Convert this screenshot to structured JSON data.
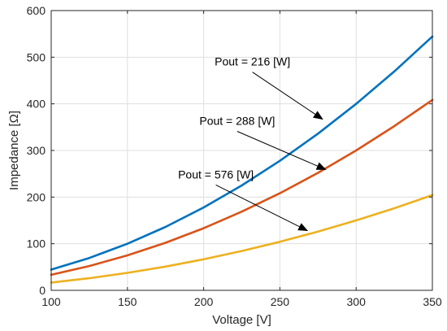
{
  "chart_data": {
    "type": "line",
    "title": "",
    "xlabel": "Voltage [V]",
    "ylabel": "Impedance [Ω]",
    "xlim": [
      100,
      350
    ],
    "ylim": [
      0,
      600
    ],
    "xticks": [
      "100",
      "150",
      "200",
      "250",
      "300",
      "350"
    ],
    "yticks": [
      "0",
      "100",
      "200",
      "300",
      "400",
      "500",
      "600"
    ],
    "grid": true,
    "x": [
      100,
      125,
      150,
      175,
      200,
      225,
      250,
      275,
      300,
      325,
      350
    ],
    "series": [
      {
        "color": "#0072bd",
        "values": [
          44.4,
          69.4,
          100.0,
          136.1,
          177.8,
          225.0,
          277.8,
          336.1,
          400.0,
          469.4,
          544.4
        ]
      },
      {
        "color": "#d95319",
        "values": [
          33.3,
          52.1,
          75.0,
          102.1,
          133.3,
          168.8,
          208.3,
          252.1,
          300.0,
          352.1,
          408.3
        ]
      },
      {
        "color": "#edb120",
        "values": [
          16.7,
          26.0,
          37.5,
          51.0,
          66.7,
          84.4,
          104.2,
          126.0,
          150.0,
          176.0,
          204.2
        ]
      }
    ],
    "annotations": [
      {
        "text": "Pout = 216 [W]",
        "from": [
          232,
          468
        ],
        "to": [
          278,
          367
        ]
      },
      {
        "text": "Pout = 288 [W]",
        "from": [
          222,
          341
        ],
        "to": [
          280,
          259
        ]
      },
      {
        "text": "Pout = 576 [W]",
        "from": [
          208,
          226
        ],
        "to": [
          268,
          128
        ]
      }
    ]
  }
}
